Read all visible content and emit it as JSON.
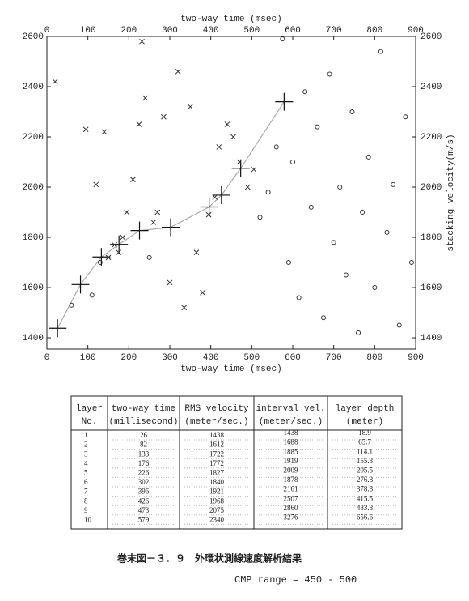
{
  "chart_data": {
    "type": "scatter",
    "xlabel": "two-way time (msec)",
    "ylabel": "stacking velocity(m/s)",
    "xlim": [
      0,
      900
    ],
    "ylim": [
      1355,
      2600
    ],
    "xticks": [
      0,
      100,
      200,
      300,
      400,
      500,
      600,
      700,
      800,
      900
    ],
    "yticks": [
      1400,
      1600,
      1800,
      2000,
      2200,
      2400,
      2600
    ],
    "series": [
      {
        "marker": "plus-line",
        "color": "#111111",
        "x": [
          26,
          82,
          133,
          176,
          226,
          302,
          396,
          426,
          473,
          579
        ],
        "values": [
          1438,
          1612,
          1722,
          1772,
          1827,
          1840,
          1921,
          1968,
          2075,
          2340
        ]
      },
      {
        "marker": "x",
        "color": "#333333",
        "x": [
          20,
          95,
          120,
          140,
          150,
          165,
          175,
          185,
          195,
          210,
          225,
          232,
          240,
          260,
          270,
          285,
          300,
          320,
          335,
          350,
          365,
          380,
          395,
          410,
          420,
          440,
          455,
          470,
          490,
          505
        ],
        "values": [
          2420,
          2230,
          2010,
          2220,
          1720,
          1770,
          1740,
          1800,
          1900,
          2030,
          2250,
          2580,
          2355,
          1860,
          1900,
          2280,
          1620,
          2460,
          1520,
          2320,
          1740,
          1580,
          1890,
          1960,
          2160,
          2250,
          2200,
          2100,
          2000,
          2070
        ]
      },
      {
        "marker": "circle",
        "color": "#333333",
        "x": [
          520,
          540,
          560,
          575,
          590,
          600,
          615,
          630,
          645,
          660,
          675,
          690,
          700,
          715,
          730,
          745,
          760,
          770,
          785,
          800,
          815,
          830,
          845,
          860,
          875,
          890,
          60,
          130,
          110,
          250
        ],
        "values": [
          1880,
          1980,
          2160,
          2590,
          1700,
          2100,
          1560,
          2380,
          1920,
          2240,
          1480,
          2450,
          1780,
          2000,
          1650,
          2300,
          1420,
          1900,
          2120,
          1600,
          2540,
          1820,
          2010,
          1450,
          2280,
          1700,
          1530,
          1700,
          1570,
          1720
        ]
      }
    ]
  },
  "table": {
    "headers": [
      [
        "layer",
        "No."
      ],
      [
        "two-way time",
        "(millisecond)"
      ],
      [
        "RMS velocity",
        "(meter/sec.)"
      ],
      [
        "interval vel.",
        "(meter/sec.)"
      ],
      [
        "layer depth",
        "(meter)"
      ]
    ],
    "rows": [
      [
        "1",
        "26",
        "1438",
        "1438",
        "18.9"
      ],
      [
        "2",
        "82",
        "1612",
        "1688",
        "65.7"
      ],
      [
        "3",
        "133",
        "1722",
        "1885",
        "114.1"
      ],
      [
        "4",
        "176",
        "1772",
        "1919",
        "155.3"
      ],
      [
        "5",
        "226",
        "1827",
        "2009",
        "205.5"
      ],
      [
        "6",
        "302",
        "1840",
        "1878",
        "276.8"
      ],
      [
        "7",
        "396",
        "1921",
        "2161",
        "378.3"
      ],
      [
        "8",
        "426",
        "1968",
        "2507",
        "415.5"
      ],
      [
        "9",
        "473",
        "2075",
        "2860",
        "483.8"
      ],
      [
        "10",
        "579",
        "2340",
        "3276",
        "656.6"
      ]
    ]
  },
  "caption": "巻末図－３．９　外環状測線速度解析結果",
  "note": "CMP range = 450 - 500"
}
